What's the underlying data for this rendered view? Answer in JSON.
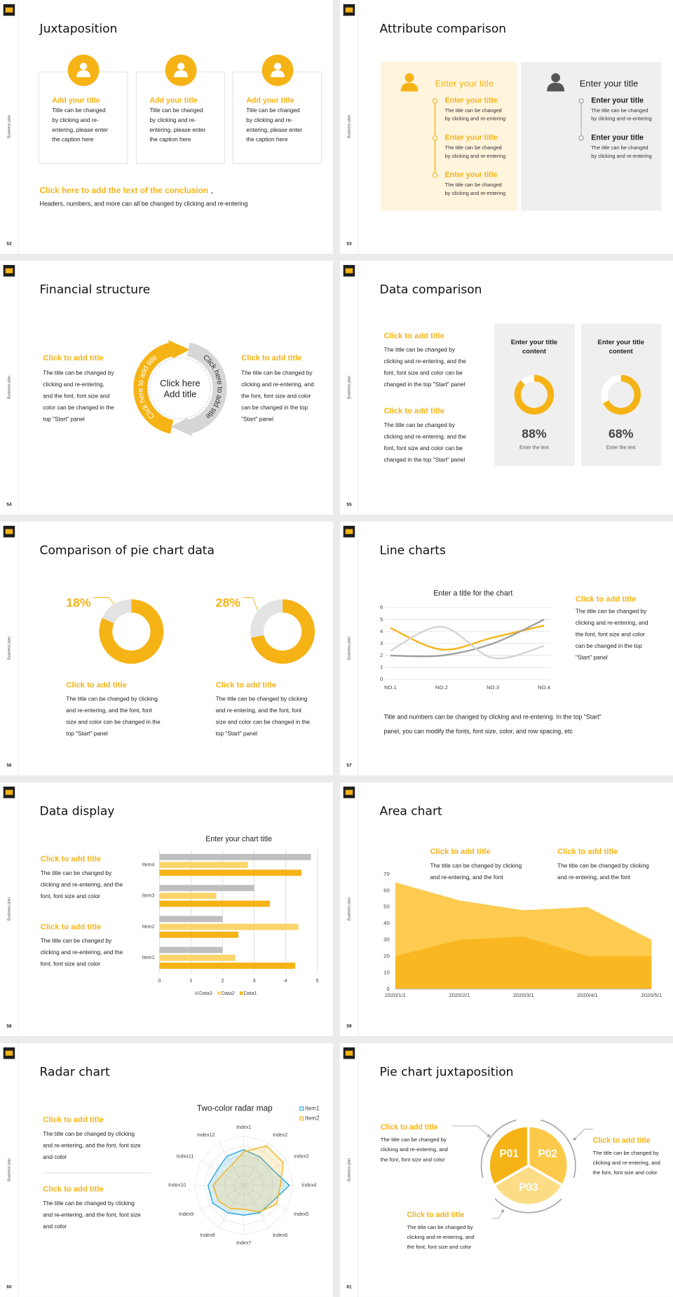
{
  "slides": [
    {
      "number": "52",
      "side_label": "Business plan",
      "title": "Juxtaposition",
      "cards": [
        {
          "title": "Add your title",
          "lines": [
            "Title can be changed",
            "by clicking and re-",
            "entering, please enter",
            "the caption here"
          ]
        },
        {
          "title": "Add your title",
          "lines": [
            "Title can be changed",
            "by clicking and re-",
            "entering, please enter",
            "the caption here"
          ]
        },
        {
          "title": "Add your title",
          "lines": [
            "Title can be changed",
            "by clicking and re-",
            "entering, please enter",
            "the caption here"
          ]
        }
      ],
      "conclusion": {
        "title": "Click here to add the text of the conclusion",
        "mark": ",",
        "text": "Headers, numbers, and more can all be changed by clicking and re-entering"
      }
    },
    {
      "number": "53",
      "side_label": "Business plan",
      "title": "Attribute comparison",
      "panels": [
        {
          "title": "Enter your title",
          "items": [
            {
              "title": "Enter your title",
              "lines": [
                "The title can be changed",
                "by clicking and re-entering"
              ]
            },
            {
              "title": "Enter your title",
              "lines": [
                "The title can be changed",
                "by clicking and re-entering"
              ]
            },
            {
              "title": "Enter your title",
              "lines": [
                "The title can be changed",
                "by clicking and re-entering"
              ]
            }
          ]
        },
        {
          "title": "Enter your title",
          "items": [
            {
              "title": "Enter your title",
              "lines": [
                "The title can be changed",
                "by clicking and re-entering"
              ]
            },
            {
              "title": "Enter your title",
              "lines": [
                "The title can be changed",
                "by clicking and re-entering"
              ]
            }
          ]
        }
      ]
    },
    {
      "number": "54",
      "side_label": "Business plan",
      "title": "Financial structure",
      "blocks": [
        {
          "title": "Click to add title",
          "lines": [
            "The title can be changed by",
            "clicking and re-entering,",
            "and the font, font size and",
            "color can be changed in the",
            "top \"Start\" panel"
          ]
        },
        {
          "title": "Click to add title",
          "lines": [
            "The title can be changed by",
            "clicking and re-entering, and",
            "the font, font size and color",
            "can be changed in the top",
            "\"Start\" panel"
          ]
        }
      ],
      "ring": {
        "arc_labels": [
          "Click here to add title",
          "Click here to add title"
        ],
        "center_lines": [
          "Click here",
          "Add title"
        ]
      }
    },
    {
      "number": "55",
      "side_label": "Business plan",
      "title": "Data comparison",
      "blocks": [
        {
          "title": "Click to add title",
          "lines": [
            "The title can be changed by",
            "clicking and re-entering, and the",
            "font, font size and color can be",
            "changed in the top \"Start\" panel"
          ]
        },
        {
          "title": "Click to add title",
          "lines": [
            "The title can be changed by",
            "clicking and re-entering, and the",
            "font, font size and color can be",
            "changed in the top \"Start\" panel"
          ]
        }
      ],
      "cards": [
        {
          "title_lines": [
            "Enter your title",
            "content"
          ],
          "value": 88,
          "value_label": "88%",
          "caption": "Enter the text"
        },
        {
          "title_lines": [
            "Enter your title",
            "content"
          ],
          "value": 68,
          "value_label": "68%",
          "caption": "Enter the text"
        }
      ]
    },
    {
      "number": "56",
      "side_label": "Business plan",
      "title": "Comparison of pie chart data",
      "charts": [
        {
          "value": 18,
          "value_label": "18%",
          "title": "Click to add title",
          "lines": [
            "The title can be changed by clicking",
            "and re-entering, and the font, font",
            "size and color can be changed in the",
            "top \"Start\" panel"
          ]
        },
        {
          "value": 28,
          "value_label": "28%",
          "title": "Click to add title",
          "lines": [
            "The title can be changed by clicking",
            "and re-entering, and the font, font",
            "size and color can be changed in the",
            "top \"Start\" panel"
          ]
        }
      ]
    },
    {
      "number": "57",
      "side_label": "Business plan",
      "title": "Line charts",
      "chart_data": {
        "type": "line",
        "title": "Enter a title for the chart",
        "categories": [
          "NO.1",
          "NO.2",
          "NO.3",
          "NO.4"
        ],
        "series": [
          {
            "color": "#f5b316",
            "values": [
              4.3,
              2.5,
              3.5,
              4.5
            ]
          },
          {
            "color": "#9e9e9e",
            "values": [
              2,
              2,
              3,
              5
            ]
          },
          {
            "color": "#d3d3d3",
            "values": [
              2.4,
              4.4,
              1.8,
              2.8
            ]
          }
        ],
        "ylim": [
          0,
          6
        ],
        "yticks": [
          0,
          1,
          2,
          3,
          4,
          5,
          6
        ],
        "grid": true
      },
      "block": {
        "title": "Click to add title",
        "lines": [
          "The title can be changed by",
          "clicking and re-entering, and",
          "the font, font size and color",
          "can be changed in the top",
          "\"Start\" panel"
        ]
      },
      "note_lines": [
        "Title and numbers can be changed by clicking and re-entering. In the top \"Start\"",
        "panel, you can modify the fonts, font size, color, and row spacing, etc"
      ]
    },
    {
      "number": "58",
      "side_label": "Business plan",
      "title": "Data display",
      "blocks": [
        {
          "title": "Click to add title",
          "lines": [
            "The title can be changed by",
            "clicking and re-entering, and the",
            "font, font size and color"
          ]
        },
        {
          "title": "Click to add title",
          "lines": [
            "The title can be changed by",
            "clicking and re-entering, and the",
            "font, font size and color"
          ]
        }
      ],
      "chart_data": {
        "type": "bar",
        "orientation": "horizontal",
        "title": "Enter your chart title",
        "categories": [
          "Item1",
          "Item2",
          "Item3",
          "Item4"
        ],
        "series": [
          {
            "name": "Data1",
            "color": "#f5b316",
            "values": [
              4.3,
              2.5,
              3.5,
              4.5
            ]
          },
          {
            "name": "Data2",
            "color": "#fbd46a",
            "values": [
              2.4,
              4.4,
              1.8,
              2.8
            ]
          },
          {
            "name": "Data3",
            "color": "#bfbfbf",
            "values": [
              2,
              2,
              3,
              4.8
            ]
          }
        ],
        "xlim": [
          0,
          5
        ],
        "xticks": [
          0,
          1,
          2,
          3,
          4,
          5
        ],
        "grid": true,
        "legend": "bottom"
      }
    },
    {
      "number": "59",
      "side_label": "Business plan",
      "title": "Area chart",
      "blocks": [
        {
          "title": "Click to add title",
          "lines": [
            "The title can be changed by clicking",
            "and re-entering, and the font"
          ]
        },
        {
          "title": "Click to add title",
          "lines": [
            "The title can be changed by clicking",
            "and re-entering, and the font"
          ]
        }
      ],
      "chart_data": {
        "type": "area",
        "x": [
          "2020/1/1",
          "2020/2/1",
          "2020/3/1",
          "2020/4/1",
          "2020/5/1"
        ],
        "series": [
          {
            "color": "#fccb4f",
            "values": [
              65,
              54,
              48,
              50,
              30
            ]
          },
          {
            "color": "#f9b821",
            "values": [
              20,
              30,
              32,
              20,
              20
            ]
          }
        ],
        "ylim": [
          0,
          70
        ],
        "yticks": [
          0,
          10,
          20,
          30,
          40,
          50,
          60,
          70
        ]
      }
    },
    {
      "number": "60",
      "side_label": "Business plan",
      "title": "Radar chart",
      "blocks": [
        {
          "title": "Click to add title",
          "lines": [
            "The title can be changed by clicking",
            "and re-entering, and the font, font size",
            "and color"
          ]
        },
        {
          "title": "Click to add title",
          "lines": [
            "The title can be changed by clicking",
            "and re-entering, and the font, font size",
            "and color"
          ]
        }
      ],
      "chart_data": {
        "type": "radar",
        "title": "Two-color radar map",
        "categories": [
          "Index1",
          "Index2",
          "Index3",
          "Index4",
          "Index5",
          "Index6",
          "Index7",
          "Index8",
          "Index9",
          "Index10",
          "Index11",
          "Index12"
        ],
        "series": [
          {
            "name": "Item1",
            "color": "#2aa7d8",
            "values": [
              3.6,
              3.3,
              3.3,
              4.6,
              3.3,
              3.2,
              3,
              3.2,
              3.6,
              3.6,
              3.1,
              3.4
            ]
          },
          {
            "name": "Item2",
            "color": "#f5b316",
            "values": [
              3.4,
              4.6,
              4.6,
              3.7,
              3.8,
              3.1,
              2.4,
              2.7,
              3,
              3.1,
              2.4,
              2.4
            ]
          }
        ],
        "rlim": [
          0,
          5
        ],
        "legend": "upper right"
      }
    },
    {
      "number": "61",
      "side_label": "Business plan",
      "title": "Pie chart juxtaposition",
      "segments": [
        "P01",
        "P02",
        "P03"
      ],
      "blocks": [
        {
          "title": "Click to add title",
          "lines": [
            "The title can be changed by",
            "clicking and re-entering, and",
            "the font, font size and color"
          ]
        },
        {
          "title": "Click to add title",
          "lines": [
            "The title can be changed by",
            "clicking and re-entering, and",
            "the font, font size and color"
          ]
        },
        {
          "title": "Click to add title",
          "lines": [
            "The title can be changed by",
            "clicking and re-entering, and",
            "the font, font size and color"
          ]
        }
      ]
    }
  ]
}
